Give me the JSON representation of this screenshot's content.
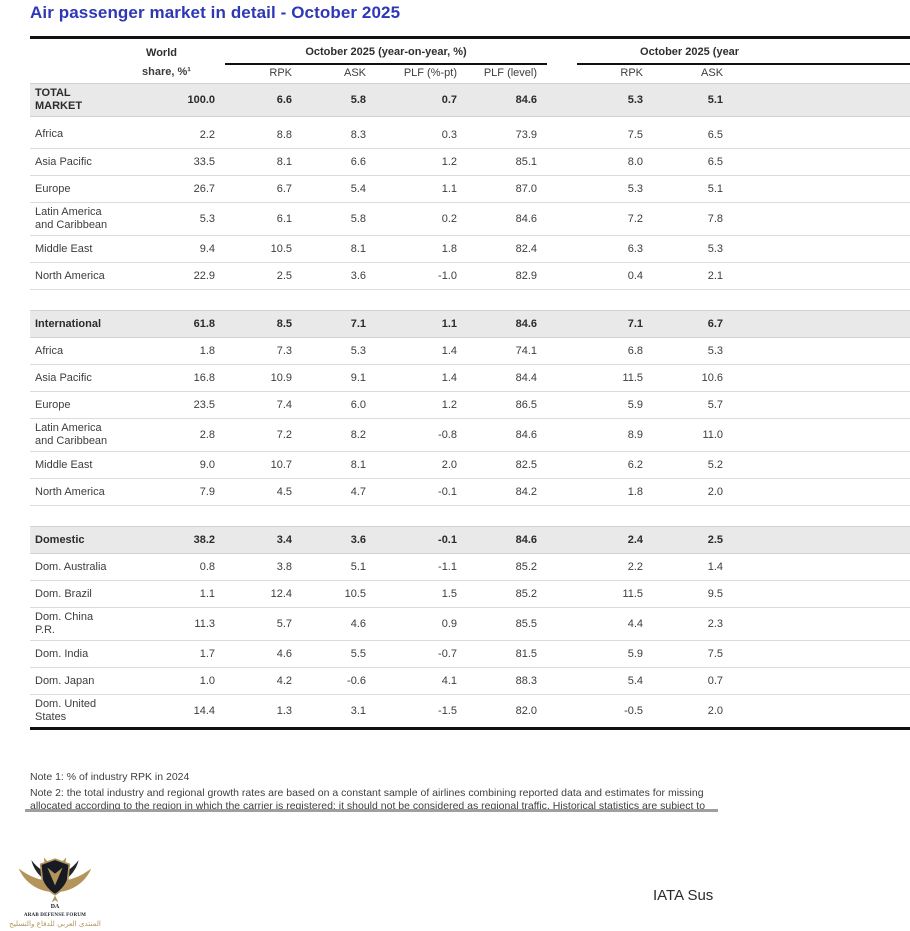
{
  "theme": {
    "title_blue": "#2e38b7",
    "rule_black": "#111111",
    "section_row_bg": "#e9e9e9",
    "divider_gray": "#9f9f9f",
    "logo_gold": "#b3955c",
    "logo_dark": "#171a21"
  },
  "title": "Air passenger market in detail - October 2025",
  "table": {
    "headers": {
      "world_line1": "World",
      "world_line2": "share, %¹",
      "group1": "October 2025 (year-on-year, %)",
      "group2": "October 2025 (year",
      "rpk": "RPK",
      "ask": "ASK",
      "plf_pt": "PLF (%-pt)",
      "plf_level": "PLF (level)",
      "rpk2": "RPK",
      "ask2": "ASK"
    },
    "rows": [
      {
        "type": "section",
        "label": "TOTAL MARKET",
        "values": [
          "100.0",
          "6.6",
          "5.8",
          "0.7",
          "84.6",
          "5.3",
          "5.1"
        ]
      },
      {
        "type": "gap-sm"
      },
      {
        "type": "data",
        "label": "Africa",
        "values": [
          "2.2",
          "8.8",
          "8.3",
          "0.3",
          "73.9",
          "7.5",
          "6.5"
        ]
      },
      {
        "type": "data",
        "label": "Asia Pacific",
        "values": [
          "33.5",
          "8.1",
          "6.6",
          "1.2",
          "85.1",
          "8.0",
          "6.5"
        ]
      },
      {
        "type": "data",
        "label": "Europe",
        "values": [
          "26.7",
          "6.7",
          "5.4",
          "1.1",
          "87.0",
          "5.3",
          "5.1"
        ]
      },
      {
        "type": "data",
        "label": "Latin America and Caribbean",
        "values": [
          "5.3",
          "6.1",
          "5.8",
          "0.2",
          "84.6",
          "7.2",
          "7.8"
        ]
      },
      {
        "type": "data",
        "label": "Middle East",
        "values": [
          "9.4",
          "10.5",
          "8.1",
          "1.8",
          "82.4",
          "6.3",
          "5.3"
        ]
      },
      {
        "type": "data",
        "label": "North America",
        "values": [
          "22.9",
          "2.5",
          "3.6",
          "-1.0",
          "82.9",
          "0.4",
          "2.1"
        ]
      },
      {
        "type": "gap-lg"
      },
      {
        "type": "section",
        "label": "International",
        "values": [
          "61.8",
          "8.5",
          "7.1",
          "1.1",
          "84.6",
          "7.1",
          "6.7"
        ]
      },
      {
        "type": "data",
        "label": "Africa",
        "values": [
          "1.8",
          "7.3",
          "5.3",
          "1.4",
          "74.1",
          "6.8",
          "5.3"
        ]
      },
      {
        "type": "data",
        "label": "Asia Pacific",
        "values": [
          "16.8",
          "10.9",
          "9.1",
          "1.4",
          "84.4",
          "11.5",
          "10.6"
        ]
      },
      {
        "type": "data",
        "label": "Europe",
        "values": [
          "23.5",
          "7.4",
          "6.0",
          "1.2",
          "86.5",
          "5.9",
          "5.7"
        ]
      },
      {
        "type": "data",
        "label": "Latin America and Caribbean",
        "values": [
          "2.8",
          "7.2",
          "8.2",
          "-0.8",
          "84.6",
          "8.9",
          "11.0"
        ]
      },
      {
        "type": "data",
        "label": "Middle East",
        "values": [
          "9.0",
          "10.7",
          "8.1",
          "2.0",
          "82.5",
          "6.2",
          "5.2"
        ]
      },
      {
        "type": "data",
        "label": "North America",
        "values": [
          "7.9",
          "4.5",
          "4.7",
          "-0.1",
          "84.2",
          "1.8",
          "2.0"
        ]
      },
      {
        "type": "gap-lg"
      },
      {
        "type": "section",
        "label": "Domestic",
        "values": [
          "38.2",
          "3.4",
          "3.6",
          "-0.1",
          "84.6",
          "2.4",
          "2.5"
        ]
      },
      {
        "type": "data",
        "label": "Dom. Australia",
        "values": [
          "0.8",
          "3.8",
          "5.1",
          "-1.1",
          "85.2",
          "2.2",
          "1.4"
        ]
      },
      {
        "type": "data",
        "label": "Dom. Brazil",
        "values": [
          "1.1",
          "12.4",
          "10.5",
          "1.5",
          "85.2",
          "11.5",
          "9.5"
        ]
      },
      {
        "type": "data",
        "label": "Dom. China P.R.",
        "values": [
          "11.3",
          "5.7",
          "4.6",
          "0.9",
          "85.5",
          "4.4",
          "2.3"
        ]
      },
      {
        "type": "data",
        "label": "Dom. India",
        "values": [
          "1.7",
          "4.6",
          "5.5",
          "-0.7",
          "81.5",
          "5.9",
          "7.5"
        ]
      },
      {
        "type": "data",
        "label": "Dom. Japan",
        "values": [
          "1.0",
          "4.2",
          "-0.6",
          "4.1",
          "88.3",
          "5.4",
          "0.7"
        ]
      },
      {
        "type": "data last",
        "label": "Dom. United States",
        "values": [
          "14.4",
          "1.3",
          "3.1",
          "-1.5",
          "82.0",
          "-0.5",
          "2.0"
        ]
      }
    ]
  },
  "notes": {
    "note1": "Note 1: % of industry RPK in 2024",
    "note2_line1": "Note 2: the total industry and regional growth rates are based on a constant sample of airlines combining reported data and estimates for missing",
    "note2_line2": "allocated according to the region in which the carrier is registered; it should not be considered as regional traffic. Historical statistics are subject to"
  },
  "footer": {
    "iata_label": "IATA Sus",
    "logo": {
      "monogram": "DA",
      "name_en": "ARAB DEFENSE FORUM",
      "name_ar": "المنتدى العربي للدفاع والتسليح"
    }
  }
}
